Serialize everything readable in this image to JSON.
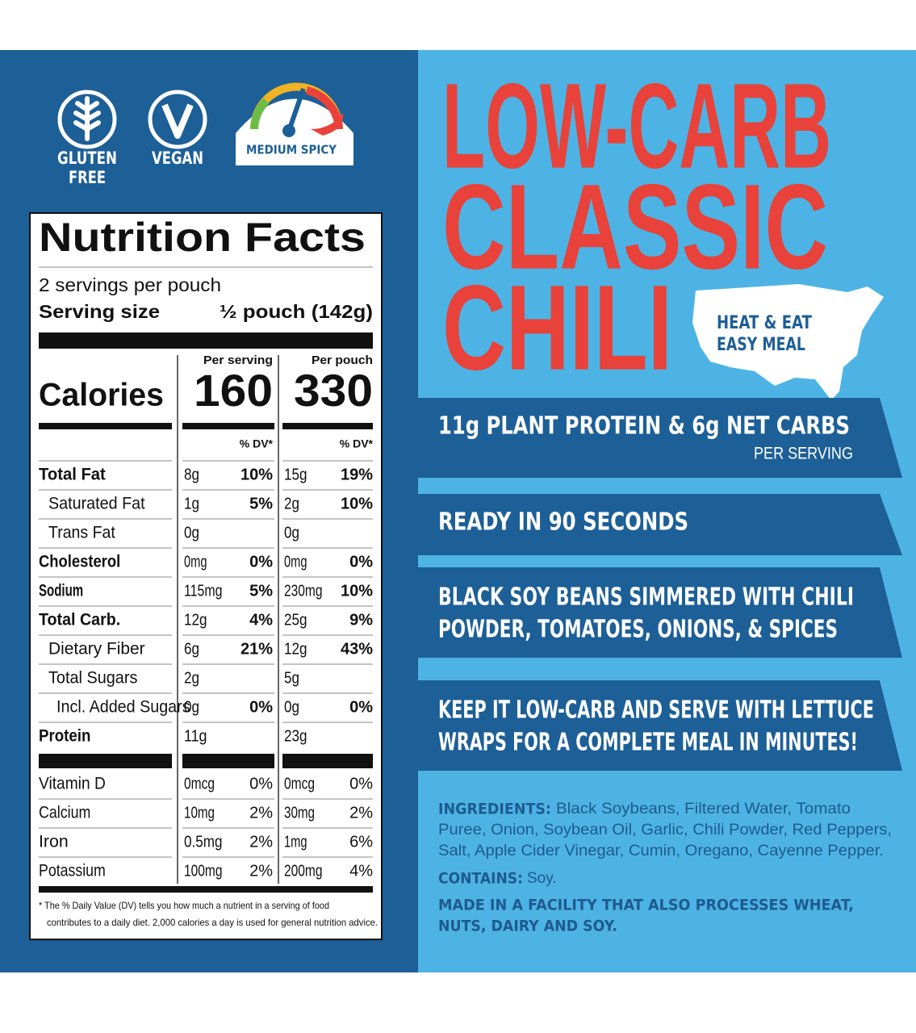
{
  "badges": {
    "gluten_free": [
      "GLUTEN",
      "FREE"
    ],
    "vegan": "VEGAN",
    "spicy": "MEDIUM SPICY"
  },
  "nutrition": {
    "title": "Nutrition Facts",
    "servings": "2 servings per pouch",
    "serving_size_label": "Serving size",
    "serving_size": "½ pouch (142g)",
    "calories_label": "Calories",
    "columns": [
      "Per serving",
      "Per pouch"
    ],
    "calories": [
      "160",
      "330"
    ],
    "dv_header": "% DV*",
    "rows": [
      [
        "Total Fat",
        "8g",
        "10%",
        "15g",
        "19%"
      ],
      [
        "Saturated Fat",
        "1g",
        "5%",
        "2g",
        "10%"
      ],
      [
        "Trans Fat",
        "0g",
        null,
        "0g",
        null
      ],
      [
        "Cholesterol",
        "0mg",
        "0%",
        "0mg",
        "0%"
      ],
      [
        "Sodium",
        "115mg",
        "5%",
        "230mg",
        "10%"
      ],
      [
        "Total Carb.",
        "12g",
        "4%",
        "25g",
        "9%"
      ],
      [
        "Dietary Fiber",
        "6g",
        "21%",
        "12g",
        "43%"
      ],
      [
        "Total Sugars",
        "2g",
        null,
        "5g",
        null
      ],
      [
        "Incl. Added Sugars",
        "0g",
        "0%",
        "0g",
        "0%"
      ],
      [
        "Protein",
        "11g",
        null,
        "23g",
        null
      ]
    ],
    "vitamins": [
      [
        "Vitamin D",
        "0mcg",
        "0%",
        "0mcg",
        "0%"
      ],
      [
        "Calcium",
        "10mg",
        "2%",
        "30mg",
        "2%"
      ],
      [
        "Iron",
        "0.5mg",
        "2%",
        "1mg",
        "6%"
      ],
      [
        "Potassium",
        "100mg",
        "2%",
        "200mg",
        "4%"
      ]
    ],
    "footnote": [
      "* The % Daily Value (DV) tells you how much a nutrient in a serving of food",
      "contributes to a daily diet. 2,000 calories a day is used for general nutrition advice."
    ]
  },
  "headline": [
    "LOW-CARB",
    "CLASSIC",
    "CHILI"
  ],
  "map_label": [
    "HEAT & EAT",
    "EASY MEAL"
  ],
  "banners": [
    {
      "lines": [
        "11g PLANT PROTEIN & 6g NET CARBS"
      ],
      "sub": "PER SERVING"
    },
    {
      "lines": [
        "READY IN 90 SECONDS"
      ]
    },
    {
      "lines": [
        "BLACK SOY BEANS SIMMERED WITH CHILI",
        "POWDER, TOMATOES, ONIONS, & SPICES"
      ]
    },
    {
      "lines": [
        "KEEP IT LOW-CARB AND SERVE WITH LETTUCE",
        "WRAPS FOR A COMPLETE MEAL IN MINUTES!"
      ]
    }
  ],
  "ingredients": {
    "label": "INGREDIENTS:",
    "lines": [
      "Black Soybeans, Filtered Water, Tomato",
      "Puree, Onion, Soybean Oil, Garlic, Chili Powder, Red Peppers,",
      "Salt, Apple Cider Vinegar, Cumin, Oregano, Cayenne Pepper."
    ],
    "contains_label": "CONTAINS:",
    "contains": "Soy.",
    "facility": [
      "MADE IN A FACILITY THAT ALSO PROCESSES WHEAT,",
      "NUTS, DAIRY AND SOY."
    ]
  }
}
